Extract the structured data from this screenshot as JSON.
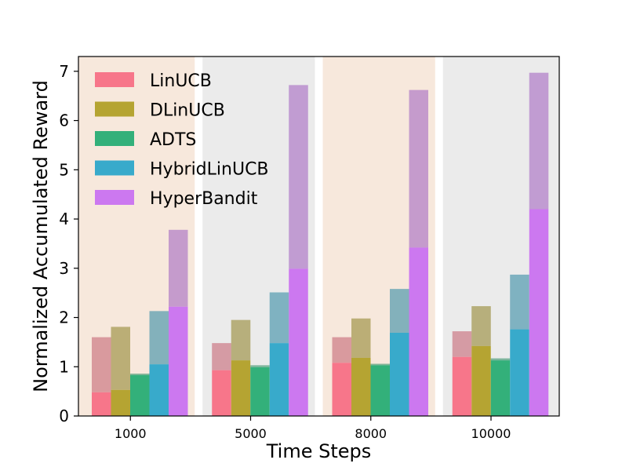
{
  "chart_data": {
    "type": "bar",
    "categories": [
      "1000",
      "5000",
      "8000",
      "10000"
    ],
    "xlabel": "Time Steps",
    "ylabel": "Normalized Accumulated Reward",
    "ylim": [
      0,
      7.3
    ],
    "yticks": [
      "0",
      "1",
      "2",
      "3",
      "4",
      "5",
      "6",
      "7"
    ],
    "legend_position": "top-left",
    "group_backgrounds": [
      "#f7e8dc",
      "#ebebeb",
      "#f7e8dc",
      "#ebebeb"
    ],
    "series": [
      {
        "name": "LinUCB",
        "color": "#f7768a",
        "values": [
          0.48,
          0.93,
          1.08,
          1.2
        ],
        "upper": [
          1.6,
          1.48,
          1.6,
          1.72
        ]
      },
      {
        "name": "DLinUCB",
        "color": "#b5a432",
        "values": [
          0.53,
          1.13,
          1.18,
          1.42
        ],
        "upper": [
          1.81,
          1.95,
          1.98,
          2.23
        ]
      },
      {
        "name": "ADTS",
        "color": "#33b07a",
        "values": [
          0.83,
          0.99,
          1.03,
          1.13
        ],
        "upper": [
          0.86,
          1.03,
          1.06,
          1.17
        ]
      },
      {
        "name": "HybridLinUCB",
        "color": "#38aacb",
        "values": [
          1.05,
          1.48,
          1.69,
          1.76
        ],
        "upper": [
          2.13,
          2.51,
          2.58,
          2.87
        ]
      },
      {
        "name": "HyperBandit",
        "color": "#cc78f0",
        "values": [
          2.22,
          2.99,
          3.42,
          4.2
        ],
        "upper": [
          3.78,
          6.72,
          6.62,
          6.97
        ]
      }
    ]
  }
}
